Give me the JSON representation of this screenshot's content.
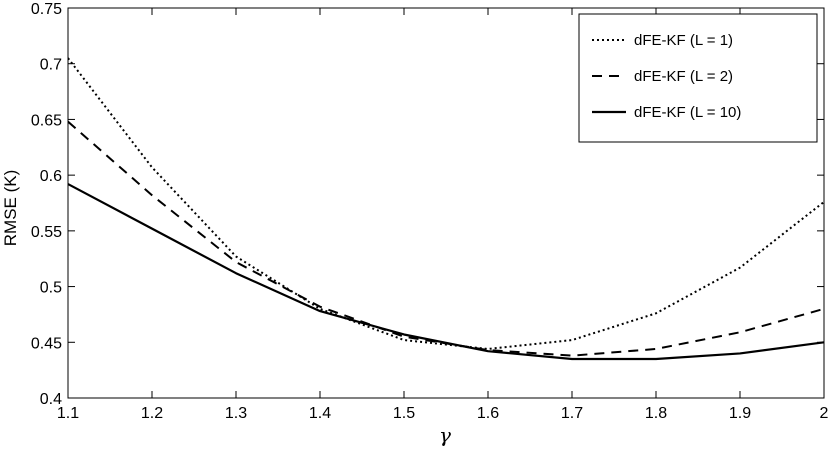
{
  "chart_data": {
    "type": "line",
    "title": "",
    "xlabel": "γ",
    "ylabel": "RMSE (K)",
    "xlim": [
      1.1,
      2.0
    ],
    "ylim": [
      0.4,
      0.75
    ],
    "xticks": [
      "1.1",
      "1.2",
      "1.3",
      "1.4",
      "1.5",
      "1.6",
      "1.7",
      "1.8",
      "1.9",
      "2"
    ],
    "yticks": [
      "0.4",
      "0.45",
      "0.5",
      "0.55",
      "0.6",
      "0.65",
      "0.7",
      "0.75"
    ],
    "grid": false,
    "legend_position": "top-right",
    "x": [
      1.1,
      1.2,
      1.3,
      1.4,
      1.5,
      1.6,
      1.7,
      1.8,
      1.9,
      2.0
    ],
    "series": [
      {
        "name": "dFE-KF (L = 1)",
        "style": "dotted",
        "values": [
          0.705,
          0.607,
          0.527,
          0.48,
          0.452,
          0.444,
          0.452,
          0.476,
          0.517,
          0.576
        ]
      },
      {
        "name": "dFE-KF (L = 2)",
        "style": "dashed",
        "values": [
          0.648,
          0.582,
          0.522,
          0.482,
          0.455,
          0.443,
          0.438,
          0.444,
          0.459,
          0.48
        ]
      },
      {
        "name": "dFE-KF (L = 10)",
        "style": "solid",
        "values": [
          0.592,
          0.552,
          0.512,
          0.478,
          0.457,
          0.442,
          0.435,
          0.435,
          0.44,
          0.45
        ]
      }
    ],
    "line_color": "#000000"
  }
}
